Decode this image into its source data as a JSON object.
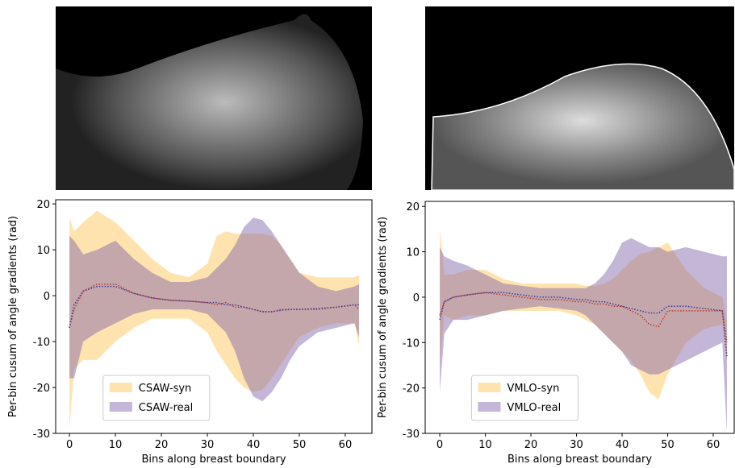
{
  "chart_data": [
    {
      "type": "band",
      "xlabel": "Bins along breast boundary",
      "ylabel": "Per-bin cusum of angle gradients (rad)",
      "x": [
        0,
        1,
        3,
        6,
        10,
        14,
        18,
        22,
        26,
        30,
        32,
        34,
        36,
        38,
        40,
        42,
        44,
        46,
        48,
        50,
        54,
        58,
        62,
        63
      ],
      "xlim": [
        -3,
        65.8
      ],
      "xticks": [
        0,
        10,
        20,
        30,
        40,
        50,
        60
      ],
      "ylim": [
        -30,
        20.9
      ],
      "yticks": [
        -30,
        -20,
        -10,
        0,
        10,
        20
      ],
      "legend": "lower center",
      "series": [
        {
          "name": "CSAW-syn",
          "color": "#ffc04d",
          "line_color": "#c0392b",
          "upper": [
            17,
            14,
            16,
            18.5,
            16,
            12,
            8,
            5,
            4,
            7,
            13,
            14,
            13.5,
            13.5,
            13.5,
            13.5,
            13,
            11,
            8,
            5,
            4,
            4,
            4,
            4.5
          ],
          "lower": [
            -29,
            -16,
            -14,
            -14,
            -10,
            -7,
            -5,
            -5,
            -5,
            -8,
            -12,
            -15,
            -18,
            -20,
            -21,
            -20.5,
            -18,
            -15,
            -12,
            -9,
            -7,
            -6,
            -6,
            -11
          ],
          "mean": [
            -7,
            -3,
            1,
            2.5,
            2.5,
            0.5,
            -0.5,
            -1,
            -1.2,
            -1.5,
            -2,
            -1.5,
            -2.5,
            -2.5,
            -3,
            -3.5,
            -3.5,
            -3,
            -3,
            -3,
            -3,
            -2.5,
            -2,
            -3
          ]
        },
        {
          "name": "CSAW-real",
          "color": "#7b5ea7",
          "line_color": "#3a3aa0",
          "upper": [
            13,
            12,
            9,
            10,
            12,
            8,
            5,
            3,
            3,
            4,
            6,
            8,
            11,
            15,
            17,
            16.5,
            14,
            11,
            8,
            5,
            2,
            1,
            2,
            2.5
          ],
          "lower": [
            -18,
            -18,
            -10,
            -8,
            -6,
            -4,
            -3,
            -3,
            -3,
            -4,
            -6,
            -8,
            -12,
            -18,
            -22,
            -23,
            -21,
            -18,
            -14,
            -11,
            -8,
            -7,
            -6,
            -9
          ],
          "mean": [
            -7,
            -2,
            1,
            2,
            2,
            0.5,
            -0.5,
            -1,
            -1.2,
            -1.5,
            -1.5,
            -2,
            -2,
            -2.5,
            -3,
            -3.5,
            -3.5,
            -3.2,
            -3,
            -3,
            -2.8,
            -2.5,
            -2,
            -2
          ]
        }
      ]
    },
    {
      "type": "band",
      "xlabel": "Bins along breast boundary",
      "ylabel": "Per-bin cusum of angle gradients (rad)",
      "x": [
        0,
        1,
        3,
        6,
        10,
        14,
        18,
        22,
        26,
        30,
        32,
        34,
        36,
        38,
        40,
        42,
        44,
        46,
        48,
        50,
        54,
        58,
        62,
        63
      ],
      "xlim": [
        -3.2,
        64.6
      ],
      "xticks": [
        0,
        10,
        20,
        30,
        40,
        50,
        60
      ],
      "ylim": [
        -30,
        21.1
      ],
      "yticks": [
        -30,
        -20,
        -10,
        0,
        10,
        20
      ],
      "legend": "lower center",
      "series": [
        {
          "name": "VMLO-syn",
          "color": "#ffc04d",
          "line_color": "#c0392b",
          "upper": [
            15,
            5,
            5,
            6,
            6,
            4,
            3,
            3,
            3,
            3,
            2.5,
            2.5,
            3,
            4,
            6,
            8,
            9.5,
            10,
            11,
            12,
            6,
            2,
            0,
            -5
          ],
          "lower": [
            -15,
            -4,
            -5,
            -4,
            -4,
            -3,
            -3,
            -3,
            -3,
            -4,
            -5,
            -6,
            -8,
            -10,
            -12,
            -14,
            -17,
            -21,
            -22.5,
            -17,
            -10,
            -7,
            -6,
            -14
          ],
          "mean": [
            -4,
            -1,
            0,
            0.5,
            1,
            0.5,
            0,
            -0.5,
            -0.5,
            -1,
            -1,
            -1.5,
            -1.5,
            -2,
            -2,
            -3,
            -4,
            -6,
            -6.5,
            -3,
            -3,
            -3,
            -3,
            -10
          ]
        },
        {
          "name": "VMLO-real",
          "color": "#7b5ea7",
          "line_color": "#3a3aa0",
          "upper": [
            11,
            9,
            8,
            7,
            5,
            3,
            2.5,
            2,
            2,
            2,
            2,
            3,
            5,
            8,
            12,
            13,
            12,
            11,
            11,
            10,
            11,
            10,
            9,
            9
          ],
          "lower": [
            -21,
            -8,
            -5,
            -5,
            -4,
            -3,
            -2.5,
            -2,
            -2.5,
            -3,
            -4,
            -6,
            -8,
            -10,
            -12,
            -15,
            -16,
            -17,
            -17,
            -16,
            -14,
            -12,
            -10,
            -30
          ],
          "mean": [
            -5,
            -1,
            0,
            0.5,
            1,
            1,
            0.5,
            0,
            0,
            -0.5,
            -0.5,
            -1,
            -1,
            -1.5,
            -2,
            -2.5,
            -3,
            -3.5,
            -3.5,
            -2,
            -2,
            -2.5,
            -3,
            -13
          ]
        }
      ]
    }
  ]
}
